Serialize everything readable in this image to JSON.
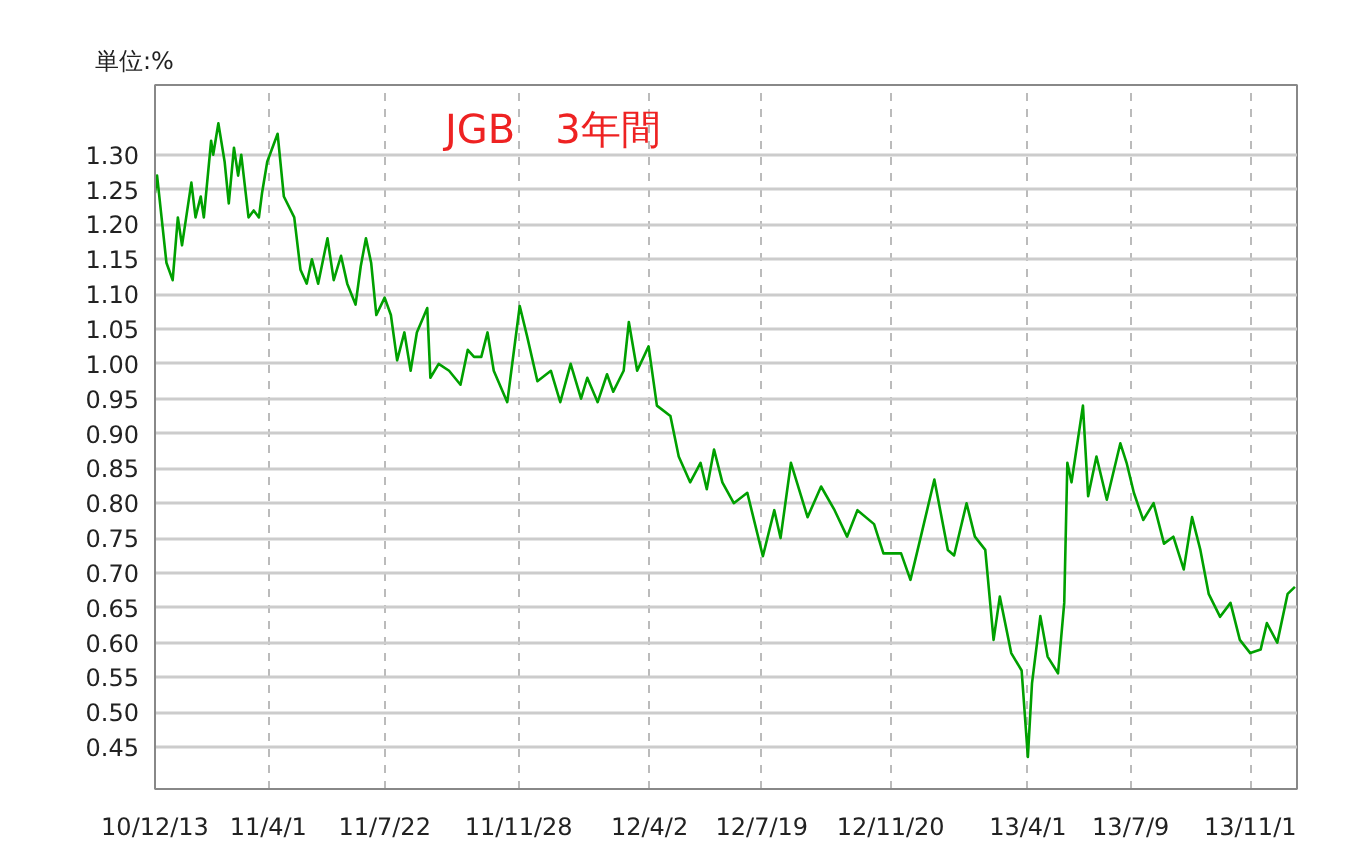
{
  "chart_data": {
    "type": "line",
    "title": "JGB　3年間",
    "ylabel": "単位:%",
    "x": [
      "2010-12-13",
      "2010-12-15",
      "2010-12-24",
      "2010-12-30",
      "2011-01-04",
      "2011-01-08",
      "2011-01-17",
      "2011-01-21",
      "2011-01-26",
      "2011-01-29",
      "2011-02-05",
      "2011-02-07",
      "2011-02-12",
      "2011-02-18",
      "2011-02-22",
      "2011-02-27",
      "2011-03-03",
      "2011-03-06",
      "2011-03-13",
      "2011-03-18",
      "2011-03-23",
      "2011-03-26",
      "2011-03-31",
      "2011-04-10",
      "2011-04-16",
      "2011-04-26",
      "2011-05-02",
      "2011-05-08",
      "2011-05-13",
      "2011-05-19",
      "2011-05-28",
      "2011-06-03",
      "2011-06-10",
      "2011-06-16",
      "2011-06-24",
      "2011-06-29",
      "2011-07-04",
      "2011-07-09",
      "2011-07-14",
      "2011-07-22",
      "2011-07-28",
      "2011-08-03",
      "2011-08-10",
      "2011-08-16",
      "2011-08-22",
      "2011-09-01",
      "2011-09-04",
      "2011-09-12",
      "2011-09-22",
      "2011-10-03",
      "2011-10-10",
      "2011-10-16",
      "2011-10-23",
      "2011-10-29",
      "2011-11-04",
      "2011-11-17",
      "2011-11-29",
      "2011-12-06",
      "2011-12-16",
      "2011-12-29",
      "2012-01-07",
      "2012-01-17",
      "2012-01-27",
      "2012-02-02",
      "2012-02-12",
      "2012-02-21",
      "2012-02-27",
      "2012-03-08",
      "2012-03-13",
      "2012-03-21",
      "2012-04-01",
      "2012-04-09",
      "2012-04-22",
      "2012-04-30",
      "2012-05-11",
      "2012-05-21",
      "2012-05-27",
      "2012-06-03",
      "2012-06-11",
      "2012-06-22",
      "2012-07-05",
      "2012-07-20",
      "2012-07-31",
      "2012-08-06",
      "2012-08-16",
      "2012-09-01",
      "2012-09-14",
      "2012-09-27",
      "2012-10-09",
      "2012-10-19",
      "2012-11-04",
      "2012-11-13",
      "2012-11-30",
      "2012-12-09",
      "2012-12-19",
      "2013-01-01",
      "2013-01-14",
      "2013-01-20",
      "2013-02-01",
      "2013-02-09",
      "2013-02-19",
      "2013-02-27",
      "2013-03-05",
      "2013-03-16",
      "2013-03-26",
      "2013-04-01",
      "2013-04-05",
      "2013-04-13",
      "2013-04-20",
      "2013-04-30",
      "2013-05-06",
      "2013-05-09",
      "2013-05-13",
      "2013-05-24",
      "2013-05-29",
      "2013-06-06",
      "2013-06-16",
      "2013-06-29",
      "2013-07-05",
      "2013-07-12",
      "2013-07-21",
      "2013-07-31",
      "2013-08-10",
      "2013-08-19",
      "2013-08-29",
      "2013-09-06",
      "2013-09-14",
      "2013-09-22",
      "2013-10-03",
      "2013-10-13",
      "2013-10-22",
      "2013-11-01",
      "2013-11-11",
      "2013-11-17",
      "2013-11-27",
      "2013-12-07",
      "2013-12-14"
    ],
    "values": [
      1.245,
      1.27,
      1.145,
      1.12,
      1.21,
      1.17,
      1.26,
      1.21,
      1.24,
      1.21,
      1.32,
      1.3,
      1.345,
      1.29,
      1.23,
      1.31,
      1.27,
      1.3,
      1.21,
      1.22,
      1.21,
      1.245,
      1.29,
      1.33,
      1.24,
      1.21,
      1.135,
      1.115,
      1.15,
      1.115,
      1.18,
      1.12,
      1.155,
      1.115,
      1.085,
      1.14,
      1.18,
      1.145,
      1.07,
      1.095,
      1.07,
      1.005,
      1.045,
      0.99,
      1.045,
      1.08,
      0.98,
      1.0,
      0.99,
      0.97,
      1.02,
      1.01,
      1.01,
      1.045,
      0.99,
      0.945,
      1.083,
      1.04,
      0.975,
      0.99,
      0.945,
      1.0,
      0.95,
      0.98,
      0.945,
      0.985,
      0.96,
      0.99,
      1.06,
      0.99,
      1.025,
      0.94,
      0.925,
      0.867,
      0.83,
      0.858,
      0.82,
      0.877,
      0.83,
      0.8,
      0.815,
      0.724,
      0.79,
      0.75,
      0.858,
      0.78,
      0.824,
      0.79,
      0.752,
      0.79,
      0.77,
      0.728,
      0.728,
      0.69,
      0.752,
      0.834,
      0.733,
      0.725,
      0.8,
      0.752,
      0.733,
      0.604,
      0.666,
      0.585,
      0.56,
      0.436,
      0.542,
      0.638,
      0.58,
      0.556,
      0.657,
      0.858,
      0.83,
      0.94,
      0.81,
      0.867,
      0.805,
      0.886,
      0.858,
      0.815,
      0.776,
      0.8,
      0.742,
      0.752,
      0.705,
      0.78,
      0.733,
      0.67,
      0.637,
      0.657,
      0.604,
      0.585,
      0.59,
      0.628,
      0.6,
      0.67,
      0.68
    ],
    "color": "#00a000",
    "marker": "none",
    "line_style": "solid",
    "grid": true,
    "xlim": [
      "2010-12-13",
      "2013-12-16"
    ],
    "xticks": [
      {
        "value": "2010-12-13",
        "label": "10/12/13"
      },
      {
        "value": "2011-04-01",
        "label": "11/4/1"
      },
      {
        "value": "2011-07-22",
        "label": "11/7/22"
      },
      {
        "value": "2011-11-28",
        "label": "11/11/28"
      },
      {
        "value": "2012-04-02",
        "label": "12/4/2"
      },
      {
        "value": "2012-07-19",
        "label": "12/7/19"
      },
      {
        "value": "2012-11-20",
        "label": "12/11/20"
      },
      {
        "value": "2013-04-01",
        "label": "13/4/1"
      },
      {
        "value": "2013-07-09",
        "label": "13/7/9"
      },
      {
        "value": "2013-11-01",
        "label": "13/11/1"
      }
    ],
    "ylim": [
      0.39,
      1.4
    ],
    "yticks": [
      {
        "value": 0.45,
        "label": "0.45"
      },
      {
        "value": 0.5,
        "label": "0.50"
      },
      {
        "value": 0.55,
        "label": "0.55"
      },
      {
        "value": 0.6,
        "label": "0.60"
      },
      {
        "value": 0.65,
        "label": "0.65"
      },
      {
        "value": 0.7,
        "label": "0.70"
      },
      {
        "value": 0.75,
        "label": "0.75"
      },
      {
        "value": 0.8,
        "label": "0.80"
      },
      {
        "value": 0.85,
        "label": "0.85"
      },
      {
        "value": 0.9,
        "label": "0.90"
      },
      {
        "value": 0.95,
        "label": "0.95"
      },
      {
        "value": 1.0,
        "label": "1.00"
      },
      {
        "value": 1.05,
        "label": "1.05"
      },
      {
        "value": 1.1,
        "label": "1.10"
      },
      {
        "value": 1.15,
        "label": "1.15"
      },
      {
        "value": 1.2,
        "label": "1.20"
      },
      {
        "value": 1.25,
        "label": "1.25"
      },
      {
        "value": 1.3,
        "label": "1.30"
      }
    ]
  }
}
